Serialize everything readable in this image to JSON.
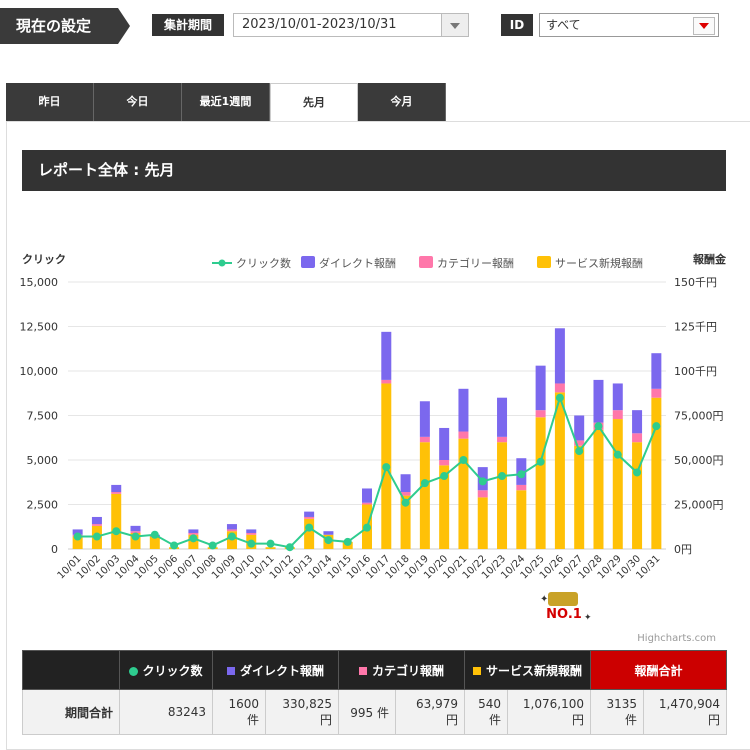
{
  "header": {
    "settings_label": "現在の設定",
    "period_label": "集計期間",
    "period_value": "2023/10/01-2023/10/31",
    "id_label": "ID",
    "id_value": "すべて"
  },
  "tabs": [
    {
      "label": "昨日",
      "active": false
    },
    {
      "label": "今日",
      "active": false
    },
    {
      "label": "最近1週間",
      "active": false
    },
    {
      "label": "先月",
      "active": true
    },
    {
      "label": "今月",
      "active": false
    }
  ],
  "report_title": "レポート全体 : 先月",
  "colors": {
    "clicks": "#2ecc8f",
    "direct": "#7b68ee",
    "category": "#ff77aa",
    "service": "#ffc107"
  },
  "chart_data": {
    "type": "bar",
    "left_axis_title": "クリック",
    "right_axis_title": "報酬金",
    "left_ticks": [
      "15,000",
      "12,500",
      "10,000",
      "7,500",
      "5,000",
      "2,500",
      "0"
    ],
    "right_ticks": [
      "150千円",
      "125千円",
      "100千円",
      "75,000円",
      "50,000円",
      "25,000円",
      "0円"
    ],
    "ylim_left": [
      0,
      15000
    ],
    "ylim_right": [
      0,
      150000
    ],
    "legend": [
      "クリック数",
      "ダイレクト報酬",
      "カテゴリー報酬",
      "サービス新規報酬"
    ],
    "categories": [
      "10/01",
      "10/02",
      "10/03",
      "10/04",
      "10/05",
      "10/06",
      "10/07",
      "10/08",
      "10/09",
      "10/10",
      "10/11",
      "10/12",
      "10/13",
      "10/14",
      "10/15",
      "10/16",
      "10/17",
      "10/18",
      "10/19",
      "10/20",
      "10/21",
      "10/22",
      "10/23",
      "10/24",
      "10/25",
      "10/26",
      "10/27",
      "10/28",
      "10/29",
      "10/30",
      "10/31"
    ],
    "series": [
      {
        "name": "サービス新規報酬",
        "values": [
          7000,
          13000,
          31000,
          9000,
          7000,
          1000,
          8000,
          1000,
          10000,
          8000,
          1000,
          1000,
          17000,
          8000,
          4000,
          25000,
          93000,
          30000,
          60000,
          47000,
          62000,
          29000,
          60000,
          33000,
          74000,
          88000,
          58000,
          67000,
          73000,
          60000,
          85000
        ]
      },
      {
        "name": "カテゴリー報酬",
        "values": [
          1000,
          1000,
          1000,
          1000,
          0,
          0,
          1000,
          0,
          1000,
          1000,
          0,
          0,
          1000,
          0,
          0,
          1000,
          2000,
          2000,
          3000,
          3000,
          4000,
          4000,
          3000,
          3000,
          4000,
          5000,
          3000,
          4000,
          5000,
          5000,
          5000
        ]
      },
      {
        "name": "ダイレクト報酬",
        "values": [
          3000,
          4000,
          4000,
          3000,
          1000,
          0,
          2000,
          0,
          3000,
          2000,
          0,
          0,
          3000,
          2000,
          0,
          8000,
          27000,
          10000,
          20000,
          18000,
          24000,
          13000,
          22000,
          15000,
          25000,
          31000,
          14000,
          24000,
          15000,
          13000,
          20000
        ]
      },
      {
        "name": "クリック数",
        "values": [
          700,
          700,
          1000,
          700,
          800,
          200,
          600,
          200,
          700,
          300,
          300,
          100,
          1200,
          500,
          400,
          1200,
          4600,
          2600,
          3700,
          4100,
          5000,
          3800,
          4100,
          4200,
          4900,
          8500,
          5500,
          6900,
          5300,
          4300,
          6900
        ]
      }
    ]
  },
  "credit": "Highcharts.com",
  "badge_label": "NO.1",
  "summary": {
    "headers": [
      "クリック数",
      "ダイレクト報酬",
      "カテゴリ報酬",
      "サービス新規報酬",
      "報酬合計"
    ],
    "row_label": "期間合計",
    "clicks": "83243",
    "direct_count": "1600",
    "direct_count_unit": "件",
    "direct_amount": "330,825",
    "direct_amount_unit": "円",
    "category_count": "995 件",
    "category_amount": "63,979",
    "category_amount_unit": "円",
    "service_count": "540",
    "service_count_unit": "件",
    "service_amount": "1,076,100",
    "service_amount_unit": "円",
    "total_count": "3135",
    "total_count_unit": "件",
    "total_amount": "1,470,904",
    "total_amount_unit": "円"
  }
}
